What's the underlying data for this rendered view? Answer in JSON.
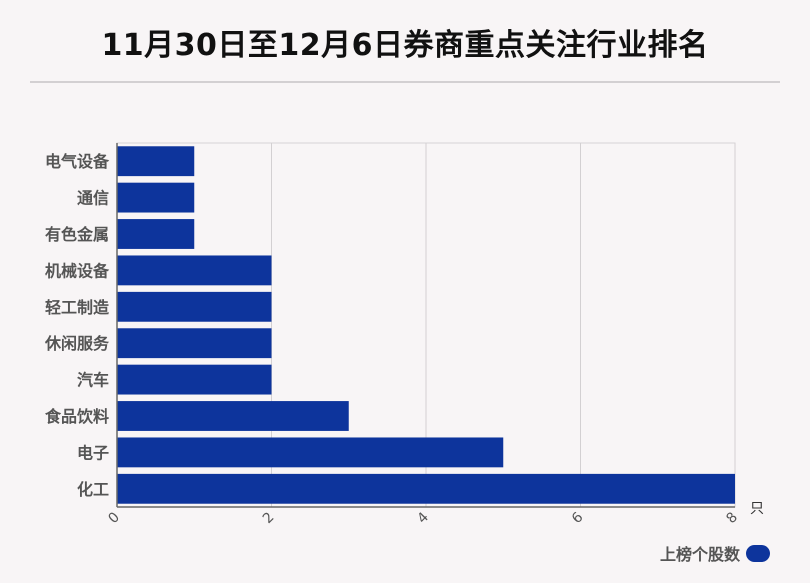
{
  "title": "11月30日至12月6日券商重点关注行业排名",
  "legend": {
    "label": "上榜个股数",
    "color": "#0d349c"
  },
  "chart_data": {
    "type": "bar",
    "orientation": "horizontal",
    "categories": [
      "电气设备",
      "通信",
      "有色金属",
      "机械设备",
      "轻工制造",
      "休闲服务",
      "汽车",
      "食品饮料",
      "电子",
      "化工"
    ],
    "series": [
      {
        "name": "上榜个股数",
        "values": [
          1,
          1,
          1,
          2,
          2,
          2,
          2,
          3,
          5,
          8
        ],
        "color": "#0d349c"
      }
    ],
    "x_ticks": [
      "0",
      "2",
      "4",
      "6",
      "8"
    ],
    "x_unit": "只",
    "xlim": [
      0,
      8
    ],
    "grid": true,
    "legend_position": "bottom-right"
  }
}
